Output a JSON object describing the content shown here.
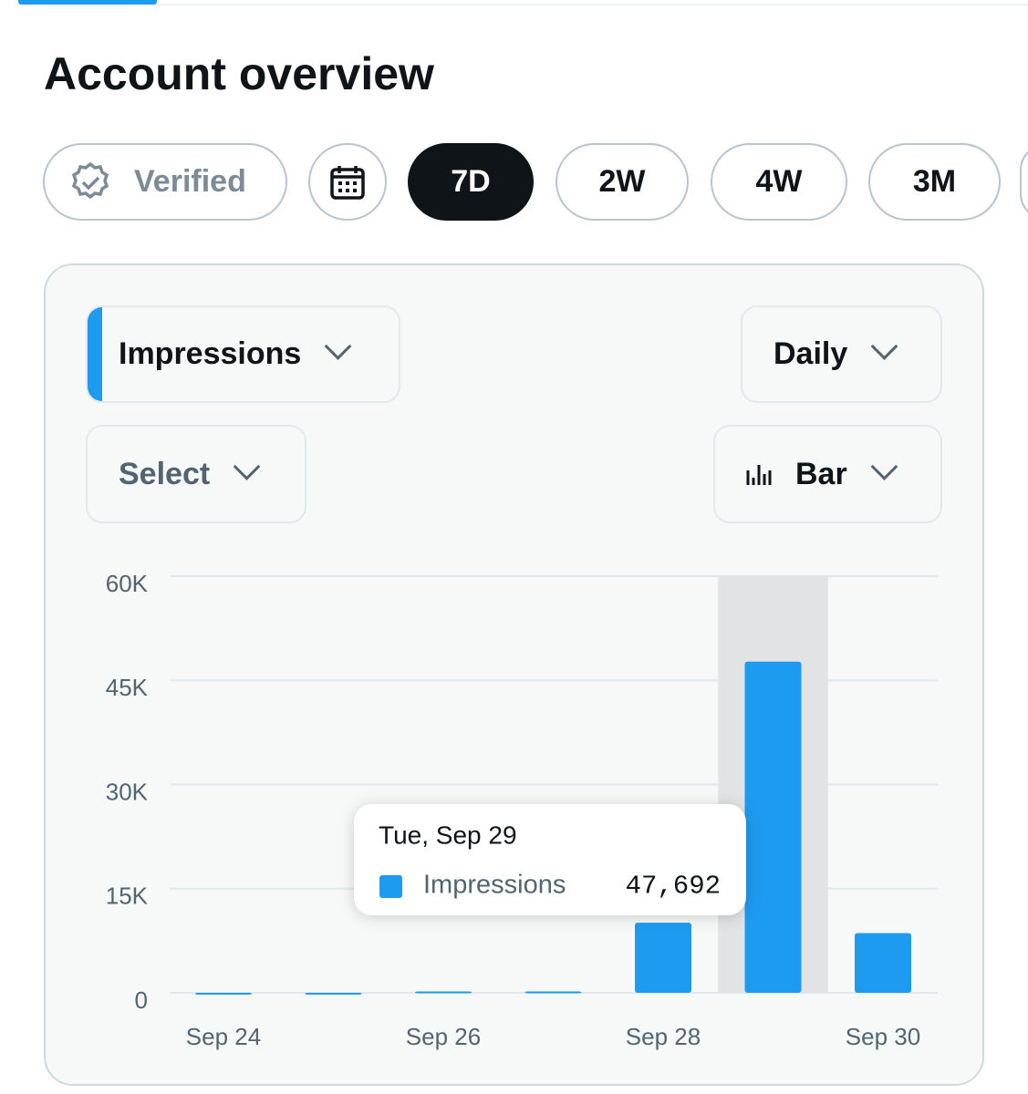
{
  "header": {
    "title": "Account overview"
  },
  "filters": {
    "verified": "Verified",
    "ranges": [
      "7D",
      "2W",
      "4W",
      "3M"
    ]
  },
  "controls": {
    "metric": "Impressions",
    "interval": "Daily",
    "compare": "Select",
    "chart_type": "Bar"
  },
  "chart_data": {
    "type": "bar",
    "categories": [
      "Sep 24",
      null,
      "Sep 26",
      null,
      "Sep 28",
      null,
      "Sep 30"
    ],
    "series": [
      {
        "name": "Impressions",
        "color": "#1d9bf0",
        "values": [
          0,
          0,
          200,
          200,
          10100,
          47692,
          8600
        ],
        "value_labels": [
          null,
          null,
          null,
          null,
          null,
          "47,692",
          null
        ]
      }
    ],
    "ylim": [
      0,
      60000
    ],
    "yticks": [
      0,
      {
        "value": 15000,
        "label": "15K"
      },
      {
        "value": 30000,
        "label": "30K"
      },
      {
        "value": 45000,
        "label": "45K"
      },
      {
        "value": 60000,
        "label": "60K"
      }
    ],
    "grid": true,
    "tooltip": {
      "title": "Tue, Sep 29"
    }
  }
}
